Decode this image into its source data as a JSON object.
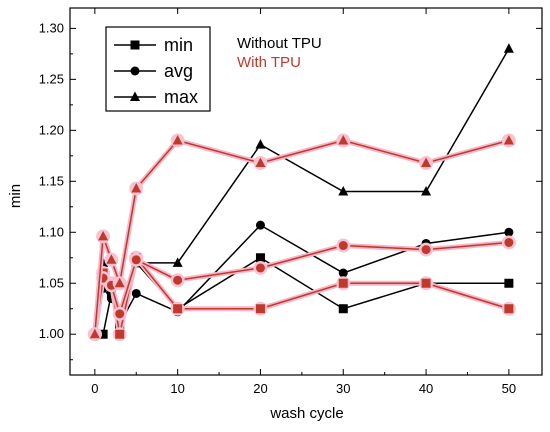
{
  "chart_data": {
    "type": "line",
    "xlabel": "wash cycle",
    "ylabel": "min",
    "xlim": [
      -3,
      54
    ],
    "ylim": [
      0.96,
      1.32
    ],
    "x_ticks": [
      0,
      10,
      20,
      30,
      40,
      50
    ],
    "y_ticks": [
      1.0,
      1.05,
      1.1,
      1.15,
      1.2,
      1.25,
      1.3
    ],
    "legend": {
      "placement": "top-left",
      "entries": [
        {
          "name": "min",
          "marker": "square"
        },
        {
          "name": "avg",
          "marker": "circle"
        },
        {
          "name": "max",
          "marker": "triangle"
        }
      ]
    },
    "group_labels": [
      {
        "text": "Without TPU",
        "color": "#000000"
      },
      {
        "text": "With TPU",
        "color": "#c0392b"
      }
    ],
    "x": [
      0,
      1,
      2,
      3,
      5,
      10,
      20,
      30,
      40,
      50
    ],
    "series": [
      {
        "group": "Without TPU",
        "stat": "min",
        "marker": "square",
        "color": "#000000",
        "values": [
          1.0,
          1.0,
          1.04,
          1.005,
          1.07,
          1.025,
          1.075,
          1.025,
          1.05,
          1.05
        ]
      },
      {
        "group": "Without TPU",
        "stat": "avg",
        "marker": "circle",
        "color": "#000000",
        "values": [
          1.0,
          1.045,
          1.035,
          1.01,
          1.04,
          1.022,
          1.107,
          1.06,
          1.089,
          1.1
        ]
      },
      {
        "group": "Without TPU",
        "stat": "max",
        "marker": "triangle",
        "color": "#000000",
        "values": [
          1.0,
          1.07,
          1.05,
          1.02,
          1.07,
          1.07,
          1.186,
          1.14,
          1.14,
          1.28
        ]
      },
      {
        "group": "With TPU",
        "stat": "min",
        "marker": "square",
        "color": "#c0392b",
        "values": [
          1.0,
          1.06,
          1.05,
          1.0,
          1.075,
          1.025,
          1.025,
          1.05,
          1.05,
          1.025
        ]
      },
      {
        "group": "With TPU",
        "stat": "avg",
        "marker": "circle",
        "color": "#c0392b",
        "values": [
          1.0,
          1.055,
          1.048,
          1.02,
          1.073,
          1.053,
          1.065,
          1.087,
          1.083,
          1.09
        ]
      },
      {
        "group": "With TPU",
        "stat": "max",
        "marker": "triangle",
        "color": "#c0392b",
        "values": [
          1.0,
          1.096,
          1.073,
          1.05,
          1.143,
          1.19,
          1.168,
          1.19,
          1.168,
          1.19
        ]
      }
    ]
  }
}
